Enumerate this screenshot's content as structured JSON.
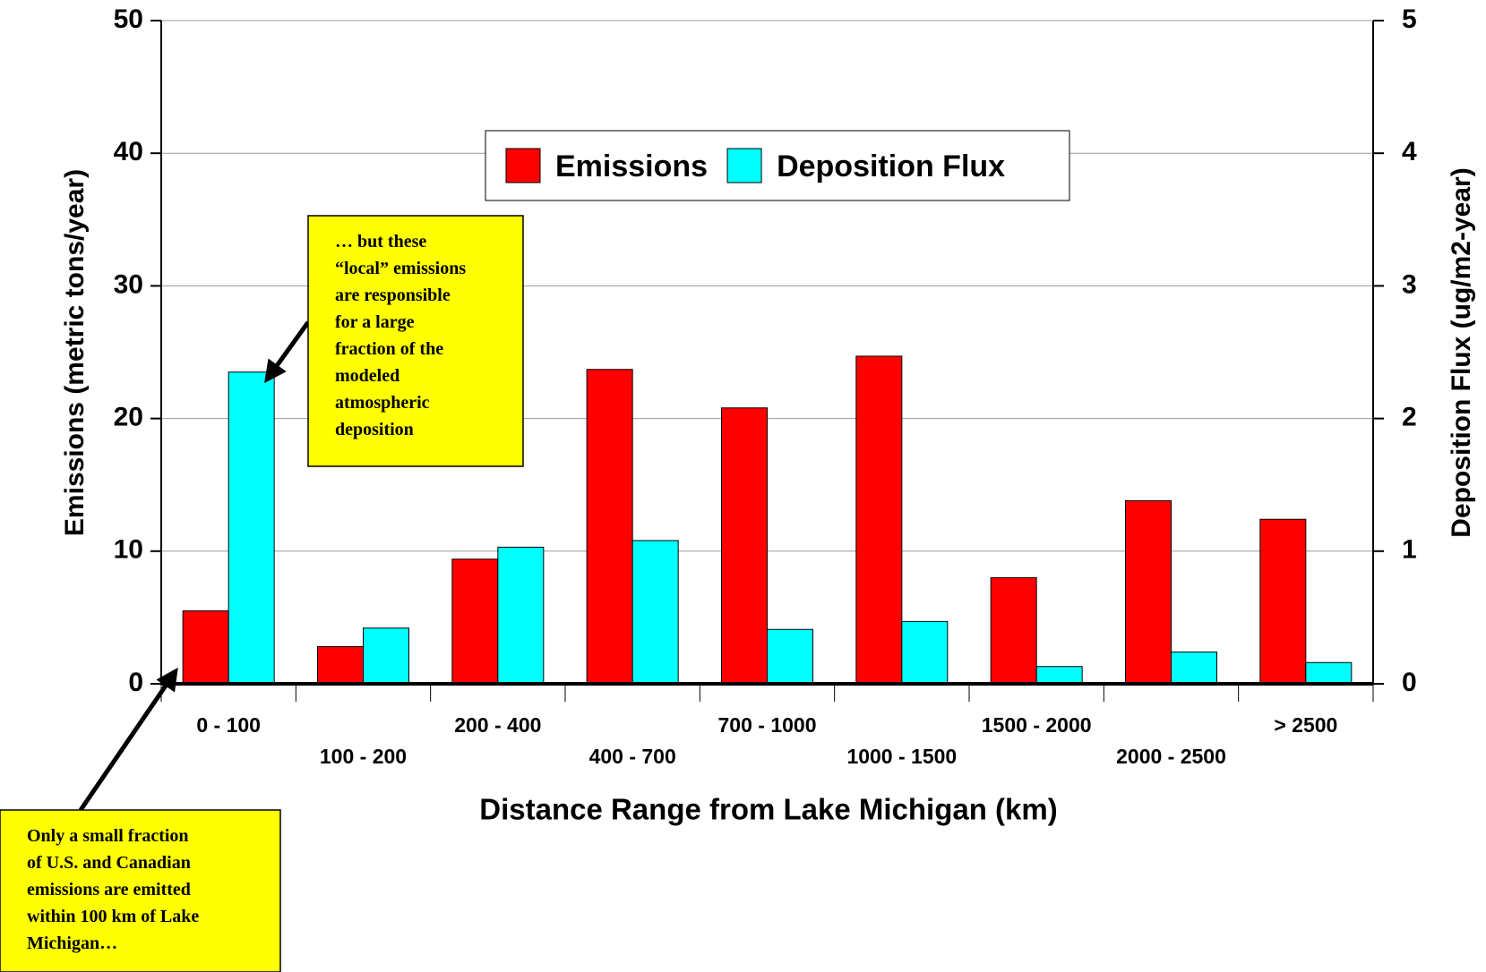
{
  "chart_data": {
    "type": "bar",
    "x_label": "Distance Range from Lake Michigan (km)",
    "y_label": "Emissions (metric tons/year)",
    "y2_label": "Deposition Flux (ug/m2-year)",
    "categories": [
      "0 - 100",
      "100 - 200",
      "200 - 400",
      "400 - 700",
      "700 - 1000",
      "1000 - 1500",
      "1500 - 2000",
      "2000 - 2500",
      "> 2500"
    ],
    "series": [
      {
        "name": "Emissions",
        "color": "#ff0000",
        "values": [
          5.5,
          2.8,
          9.4,
          23.7,
          20.8,
          24.7,
          8.0,
          13.8,
          12.4
        ]
      },
      {
        "name": "Deposition Flux",
        "color": "#00ffff",
        "axis": "y2",
        "values": [
          2.35,
          0.42,
          1.03,
          1.08,
          0.41,
          0.47,
          0.13,
          0.24,
          0.16
        ]
      }
    ],
    "ylim": [
      0,
      50
    ],
    "yticks": [
      0,
      10,
      20,
      30,
      40,
      50
    ],
    "y2lim": [
      0,
      5
    ],
    "y2ticks": [
      0,
      1,
      2,
      3,
      4,
      5
    ],
    "grid": true,
    "annotations": [
      {
        "lines": [
          "… but these",
          "“local” emissions",
          "are responsible",
          "for a large",
          "fraction of the",
          "modeled",
          "atmospheric",
          "deposition"
        ]
      },
      {
        "lines": [
          "Only a small fraction",
          "of U.S. and Canadian",
          "emissions are emitted",
          "within 100 km of Lake",
          "Michigan…"
        ]
      }
    ]
  }
}
